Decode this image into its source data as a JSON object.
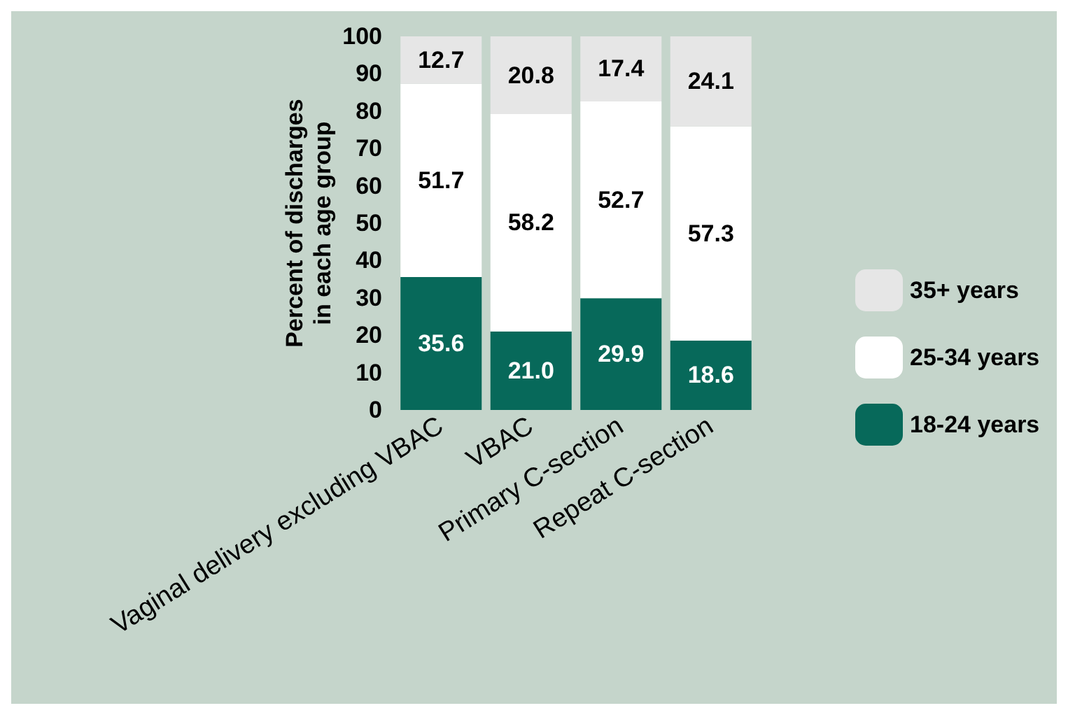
{
  "chart_data": {
    "type": "bar",
    "stacked": true,
    "ylabel": "Percent of discharges\nin each age group",
    "categories": [
      "Vaginal delivery excluding VBAC",
      "VBAC",
      "Primary C-section",
      "Repeat C-section"
    ],
    "series": [
      {
        "name": "18-24 years",
        "color": "#07695a",
        "values": [
          35.6,
          21.0,
          29.9,
          18.6
        ],
        "value_labels": [
          "35.6",
          "21.0",
          "29.9",
          "18.6"
        ]
      },
      {
        "name": "25-34 years",
        "color": "#ffffff",
        "values": [
          51.7,
          58.2,
          52.7,
          57.3
        ],
        "value_labels": [
          "51.7",
          "58.2",
          "52.7",
          "57.3"
        ]
      },
      {
        "name": "35+ years",
        "color": "#e6e6e6",
        "values": [
          12.7,
          20.8,
          17.4,
          24.1
        ],
        "value_labels": [
          "12.7",
          "20.8",
          "17.4",
          "24.1"
        ]
      }
    ],
    "ylim": [
      0,
      100
    ],
    "yticks": [
      0,
      10,
      20,
      30,
      40,
      50,
      60,
      70,
      80,
      90,
      100
    ],
    "legend": "right",
    "grid": false
  }
}
